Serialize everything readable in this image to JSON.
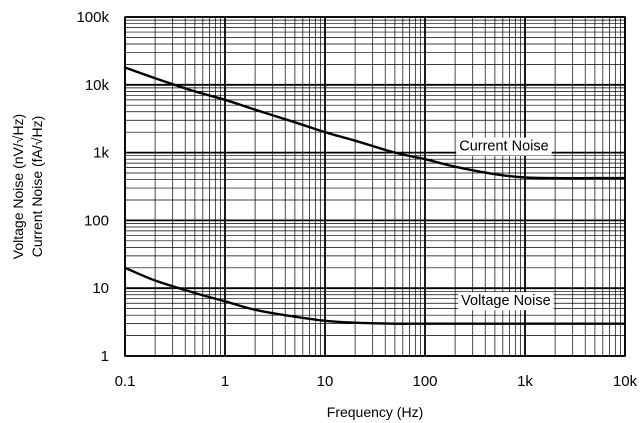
{
  "chart_data": {
    "type": "line",
    "x_scale": "log",
    "y_scale": "log",
    "xlim": [
      0.1,
      10000
    ],
    "ylim": [
      1,
      100000
    ],
    "grid": true,
    "xlabel": "Frequency (Hz)",
    "ylabel": [
      "Voltage Noise (nV/√Hz)",
      "Current Noise (fA/√Hz)"
    ],
    "x_ticks": [
      0.1,
      1,
      10,
      100,
      1000,
      10000
    ],
    "x_tick_labels": [
      "0.1",
      "1",
      "10",
      "100",
      "1k",
      "10k"
    ],
    "y_ticks": [
      1,
      10,
      100,
      1000,
      10000,
      100000
    ],
    "y_tick_labels": [
      "1",
      "10",
      "100",
      "1k",
      "10k",
      "100k"
    ],
    "series": [
      {
        "name": "Current Noise",
        "x": [
          0.1,
          0.2,
          0.5,
          1,
          2,
          5,
          10,
          20,
          50,
          100,
          200,
          500,
          1000,
          2000,
          5000,
          10000
        ],
        "y": [
          18000,
          12500,
          8000,
          6000,
          4300,
          2800,
          2000,
          1500,
          1000,
          800,
          620,
          480,
          430,
          420,
          420,
          420
        ]
      },
      {
        "name": "Voltage Noise",
        "x": [
          0.1,
          0.2,
          0.5,
          1,
          2,
          5,
          10,
          20,
          50,
          100,
          1000,
          10000
        ],
        "y": [
          20,
          13,
          8.5,
          6.4,
          4.8,
          3.8,
          3.3,
          3.1,
          3.0,
          3.0,
          3.0,
          3.0
        ]
      }
    ]
  }
}
